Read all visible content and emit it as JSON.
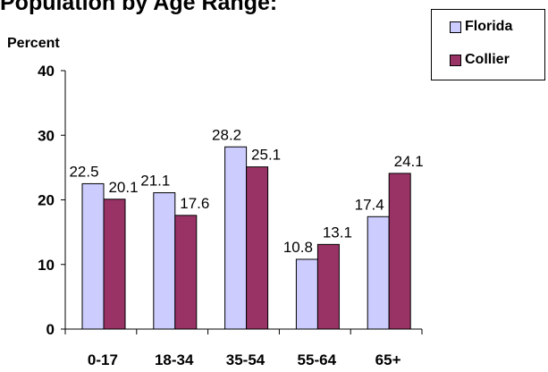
{
  "chart_data": {
    "type": "bar",
    "title": "Population by Age Range:",
    "xlabel": "",
    "ylabel": "Percent",
    "ylim": [
      0,
      40
    ],
    "yticks": [
      0,
      10,
      20,
      30,
      40
    ],
    "categories": [
      "0-17",
      "18-34",
      "35-54",
      "55-64",
      "65+"
    ],
    "series": [
      {
        "name": "Florida",
        "color": "#ccccff",
        "values": [
          22.5,
          21.1,
          28.2,
          10.8,
          17.4
        ]
      },
      {
        "name": "Collier",
        "color": "#993366",
        "values": [
          20.1,
          17.6,
          25.1,
          13.1,
          24.1
        ]
      }
    ],
    "legend": "top-right",
    "grid": false
  }
}
